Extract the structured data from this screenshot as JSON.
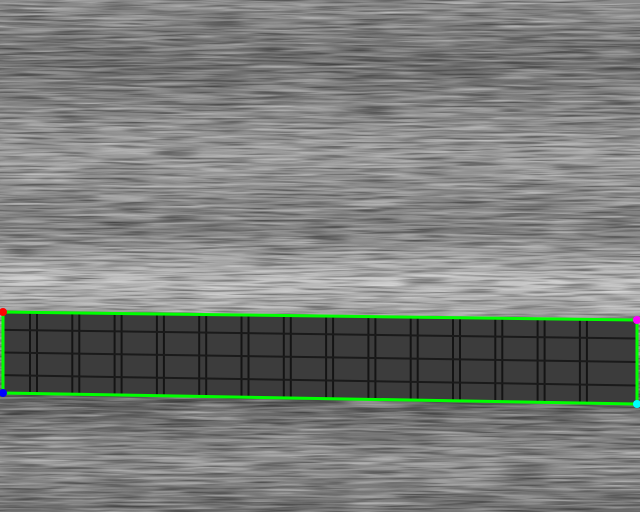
{
  "image": {
    "subject": "grayscale-metal-surface-with-detected-grid-strip",
    "detection": {
      "outline_color": "#00ff00",
      "corner_colors": {
        "top_left": "#ff0000",
        "top_right": "#ff00ff",
        "bottom_right": "#00ffff",
        "bottom_left": "#0000ff"
      }
    }
  }
}
